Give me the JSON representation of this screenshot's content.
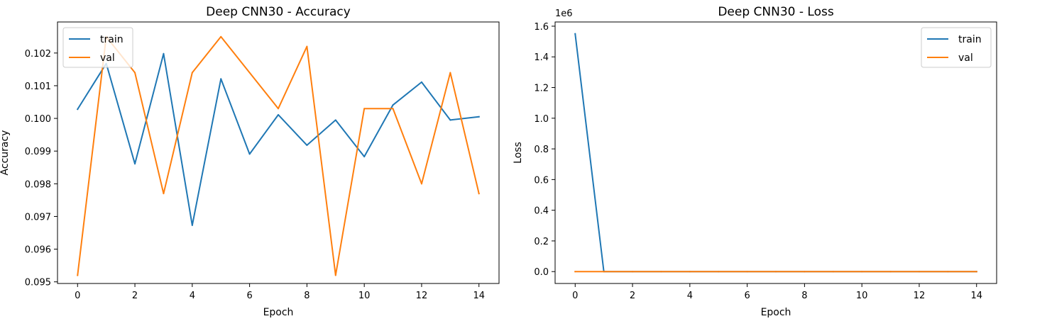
{
  "chart_data": [
    {
      "type": "line",
      "title": "Deep CNN30 - Accuracy",
      "xlabel": "Epoch",
      "ylabel": "Accuracy",
      "xlim": [
        -0.7,
        14.7
      ],
      "ylim": [
        0.09495,
        0.10295
      ],
      "xticks": [
        0,
        2,
        4,
        6,
        8,
        10,
        12,
        14
      ],
      "xtick_labels": [
        "0",
        "2",
        "4",
        "6",
        "8",
        "10",
        "12",
        "14"
      ],
      "yticks": [
        0.095,
        0.096,
        0.097,
        0.098,
        0.099,
        0.1,
        0.101,
        0.102
      ],
      "ytick_labels": [
        "0.095",
        "0.096",
        "0.097",
        "0.098",
        "0.099",
        "0.100",
        "0.101",
        "0.102"
      ],
      "legend": "top-left",
      "grid": false,
      "x": [
        0,
        1,
        2,
        3,
        4,
        5,
        6,
        7,
        8,
        9,
        10,
        11,
        12,
        13,
        14
      ],
      "series": [
        {
          "name": "train",
          "color": "#1f77b4",
          "values": [
            0.10028,
            0.10168,
            0.09861,
            0.10198,
            0.09673,
            0.10121,
            0.09891,
            0.10011,
            0.09918,
            0.09995,
            0.09883,
            0.10041,
            0.10111,
            0.09995,
            0.10005
          ]
        },
        {
          "name": "val",
          "color": "#ff7f0e",
          "values": [
            0.0952,
            0.1025,
            0.1014,
            0.0977,
            0.1014,
            0.1025,
            0.1014,
            0.1003,
            0.1022,
            0.0952,
            0.1003,
            0.1003,
            0.098,
            0.1014,
            0.0977
          ]
        }
      ]
    },
    {
      "type": "line",
      "title": "Deep CNN30 - Loss",
      "xlabel": "Epoch",
      "ylabel": "Loss",
      "offset_text": "1e6",
      "xlim": [
        -0.7,
        14.7
      ],
      "ylim": [
        -0.0775,
        1.6275
      ],
      "xticks": [
        0,
        2,
        4,
        6,
        8,
        10,
        12,
        14
      ],
      "xtick_labels": [
        "0",
        "2",
        "4",
        "6",
        "8",
        "10",
        "12",
        "14"
      ],
      "yticks": [
        0.0,
        0.2,
        0.4,
        0.6,
        0.8,
        1.0,
        1.2,
        1.4,
        1.6
      ],
      "ytick_labels": [
        "0.0",
        "0.2",
        "0.4",
        "0.6",
        "0.8",
        "1.0",
        "1.2",
        "1.4",
        "1.6"
      ],
      "legend": "top-right",
      "grid": false,
      "x": [
        0,
        1,
        2,
        3,
        4,
        5,
        6,
        7,
        8,
        9,
        10,
        11,
        12,
        13,
        14
      ],
      "series": [
        {
          "name": "train",
          "color": "#1f77b4",
          "values": [
            1.55,
            0.0,
            0.0,
            0.0,
            0.0,
            0.0,
            0.0,
            0.0,
            0.0,
            0.0,
            0.0,
            0.0,
            0.0,
            0.0,
            0.0
          ]
        },
        {
          "name": "val",
          "color": "#ff7f0e",
          "values": [
            0.0,
            0.0,
            0.0,
            0.0,
            0.0,
            0.0,
            0.0,
            0.0,
            0.0,
            0.0,
            0.0,
            0.0,
            0.0,
            0.0,
            0.0
          ]
        }
      ]
    }
  ]
}
